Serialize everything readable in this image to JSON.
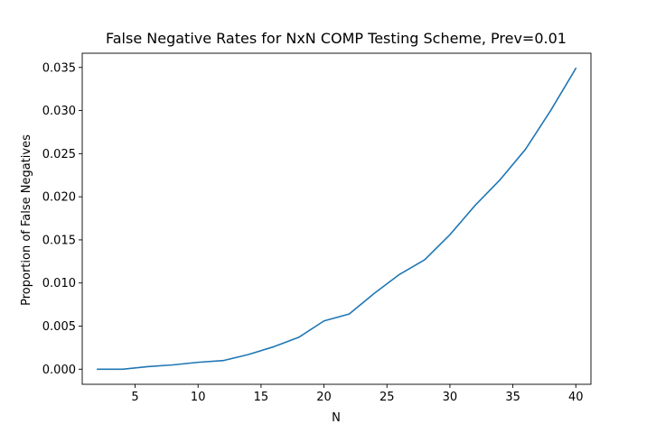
{
  "chart_data": {
    "type": "line",
    "title": "False Negative Rates for NxN COMP Testing Scheme, Prev=0.01",
    "xlabel": "N",
    "ylabel": "Proportion of False Negatives",
    "xlim": [
      0.8,
      41.2
    ],
    "ylim": [
      -0.00175,
      0.03665
    ],
    "xticks": [
      5,
      10,
      15,
      20,
      25,
      30,
      35,
      40
    ],
    "xtick_labels": [
      "5",
      "10",
      "15",
      "20",
      "25",
      "30",
      "35",
      "40"
    ],
    "yticks": [
      0.0,
      0.005,
      0.01,
      0.015,
      0.02,
      0.025,
      0.03,
      0.035
    ],
    "ytick_labels": [
      "0.000",
      "0.005",
      "0.010",
      "0.015",
      "0.020",
      "0.025",
      "0.030",
      "0.035"
    ],
    "grid": false,
    "color": "#1f77b4",
    "series": [
      {
        "x": [
          2,
          4,
          6,
          8,
          10,
          12,
          14,
          16,
          18,
          20,
          22,
          24,
          26,
          28,
          30,
          32,
          34,
          36,
          38,
          40
        ],
        "y": [
          0.0,
          0.0,
          0.0003,
          0.0005,
          0.0008,
          0.001,
          0.0017,
          0.0026,
          0.0037,
          0.0056,
          0.0064,
          0.0088,
          0.011,
          0.0127,
          0.0156,
          0.019,
          0.022,
          0.0255,
          0.03,
          0.0349
        ]
      }
    ]
  }
}
